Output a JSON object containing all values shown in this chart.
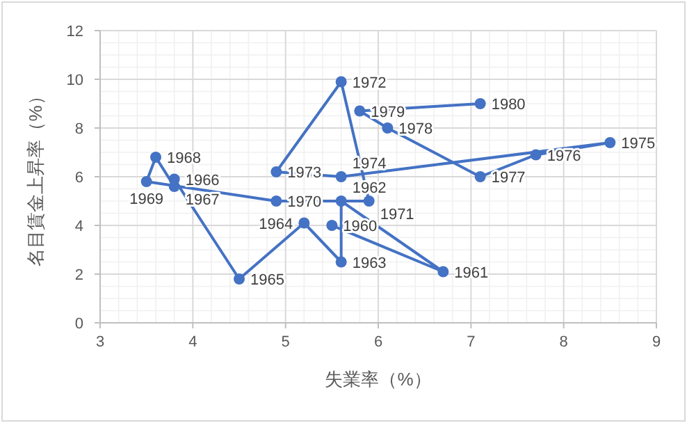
{
  "chart_data": {
    "type": "line",
    "xlabel": "失業率（%）",
    "ylabel": "名目賃金上昇率（%）",
    "x": [
      5.5,
      6.7,
      5.6,
      5.6,
      5.2,
      4.5,
      3.8,
      3.8,
      3.6,
      3.5,
      4.9,
      5.9,
      5.6,
      4.9,
      5.6,
      8.5,
      7.7,
      7.1,
      6.1,
      5.8,
      7.1
    ],
    "values": [
      4.0,
      2.1,
      5.0,
      2.5,
      4.1,
      1.8,
      5.9,
      5.6,
      6.8,
      5.8,
      5.0,
      5.0,
      9.9,
      6.2,
      6.0,
      7.4,
      6.9,
      6.0,
      8.0,
      8.7,
      9.0
    ],
    "annotations": [
      {
        "text": "1960",
        "x": 5.5,
        "y": 4.0
      },
      {
        "text": "1961",
        "x": 6.7,
        "y": 2.1
      },
      {
        "text": "1962",
        "x": 5.6,
        "y": 5.0
      },
      {
        "text": "1963",
        "x": 5.6,
        "y": 2.5
      },
      {
        "text": "1964",
        "x": 5.2,
        "y": 4.1
      },
      {
        "text": "1965",
        "x": 4.5,
        "y": 1.8
      },
      {
        "text": "1966",
        "x": 3.8,
        "y": 5.9
      },
      {
        "text": "1967",
        "x": 3.8,
        "y": 5.6
      },
      {
        "text": "1968",
        "x": 3.6,
        "y": 6.8
      },
      {
        "text": "1969",
        "x": 3.5,
        "y": 5.8
      },
      {
        "text": "1970",
        "x": 4.9,
        "y": 5.0
      },
      {
        "text": "1971",
        "x": 5.9,
        "y": 5.0
      },
      {
        "text": "1972",
        "x": 5.6,
        "y": 9.9
      },
      {
        "text": "1973",
        "x": 4.9,
        "y": 6.2
      },
      {
        "text": "1974",
        "x": 5.6,
        "y": 6.0
      },
      {
        "text": "1975",
        "x": 8.5,
        "y": 7.4
      },
      {
        "text": "1976",
        "x": 7.7,
        "y": 6.9
      },
      {
        "text": "1977",
        "x": 7.1,
        "y": 6.0
      },
      {
        "text": "1978",
        "x": 6.1,
        "y": 8.0
      },
      {
        "text": "1979",
        "x": 5.8,
        "y": 8.7
      },
      {
        "text": "1980",
        "x": 7.1,
        "y": 9.0
      }
    ],
    "color": "#4472c4",
    "marker": "circle",
    "line_style": "solid",
    "grid": true,
    "xlim": [
      3,
      9
    ],
    "xticks": [
      3,
      4,
      5,
      6,
      7,
      8,
      9
    ],
    "ylim": [
      0,
      12
    ],
    "yticks": [
      0,
      2,
      4,
      6,
      8,
      10,
      12
    ]
  }
}
